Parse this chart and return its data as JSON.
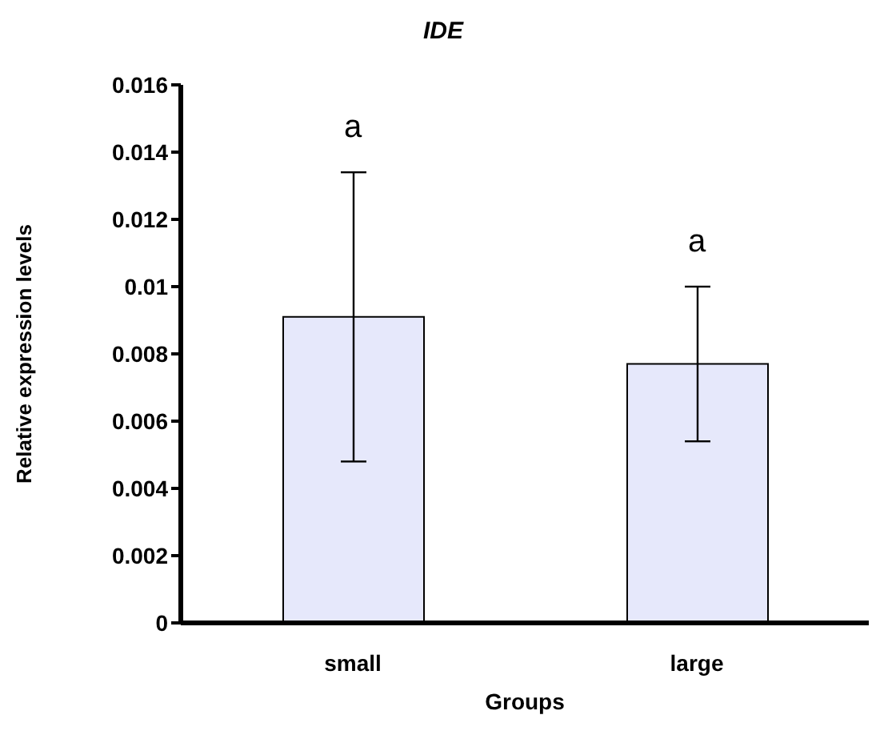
{
  "chart_data": {
    "type": "bar",
    "title": "IDE",
    "xlabel": "Groups",
    "ylabel": "Relative expression levels",
    "categories": [
      "small",
      "large"
    ],
    "values": [
      0.0091,
      0.0077
    ],
    "errors": [
      0.0043,
      0.0023
    ],
    "color": "#e6e8fb",
    "ylim": [
      0,
      0.016
    ],
    "yticks": [
      0,
      0.002,
      0.004,
      0.006,
      0.008,
      0.01,
      0.012,
      0.014,
      0.016
    ],
    "grid": false,
    "legend": false,
    "annotations": [
      "a",
      "a"
    ]
  }
}
